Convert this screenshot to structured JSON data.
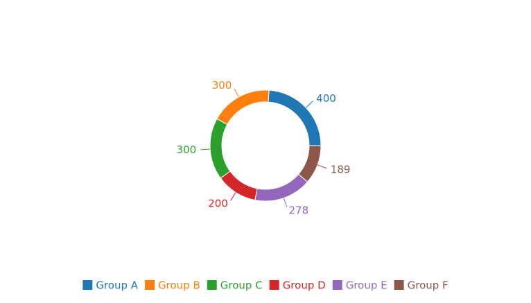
{
  "chart_data": {
    "type": "pie",
    "variant": "donut",
    "categories": [
      "Group A",
      "Group B",
      "Group C",
      "Group D",
      "Group E",
      "Group F"
    ],
    "values": [
      400,
      300,
      300,
      200,
      278,
      189
    ],
    "colors": [
      "#1f77b4",
      "#ff7f0e",
      "#2ca02c",
      "#d62728",
      "#9467bd",
      "#8c564b"
    ],
    "start_angle_deg": 0,
    "direction": "counterclockwise",
    "legend": {
      "position": "bottom-center",
      "entries": [
        "Group A",
        "Group B",
        "Group C",
        "Group D",
        "Group E",
        "Group F"
      ]
    },
    "labels_shown": "values"
  }
}
